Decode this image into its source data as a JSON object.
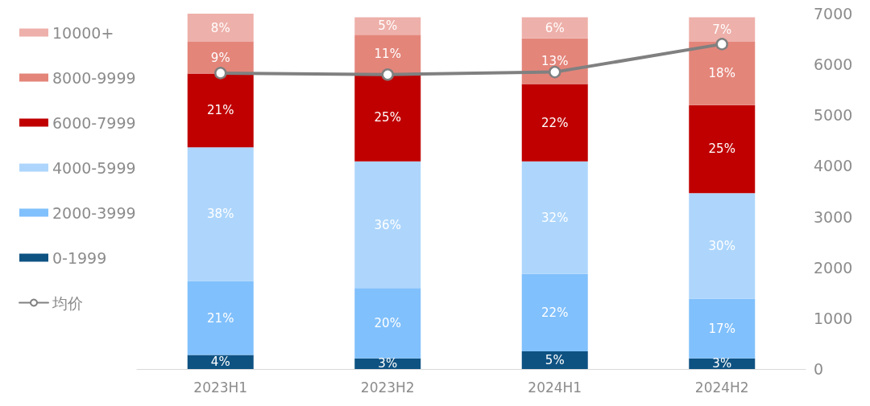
{
  "chart_data": {
    "type": "bar",
    "stacked": true,
    "categories": [
      "2023H1",
      "2023H2",
      "2024H1",
      "2024H2"
    ],
    "series": [
      {
        "name": "0-1999",
        "color": "#0e5282",
        "values": [
          4,
          3,
          5,
          3
        ],
        "value_labels": [
          "4%",
          "3%",
          "5%",
          "3%"
        ]
      },
      {
        "name": "2000-3999",
        "color": "#80c0fc",
        "values": [
          21,
          20,
          22,
          17
        ],
        "value_labels": [
          "21%",
          "20%",
          "22%",
          "17%"
        ]
      },
      {
        "name": "4000-5999",
        "color": "#aed6fc",
        "values": [
          38,
          36,
          32,
          30
        ],
        "value_labels": [
          "38%",
          "36%",
          "32%",
          "30%"
        ]
      },
      {
        "name": "6000-7999",
        "color": "#c00000",
        "values": [
          21,
          25,
          22,
          25
        ],
        "value_labels": [
          "21%",
          "25%",
          "22%",
          "25%"
        ]
      },
      {
        "name": "8000-9999",
        "color": "#e4857a",
        "values": [
          9,
          11,
          13,
          18
        ],
        "value_labels": [
          "9%",
          "11%",
          "13%",
          "18%"
        ]
      },
      {
        "name": "10000+",
        "color": "#eeb0aa",
        "values": [
          8,
          5,
          6,
          7
        ],
        "value_labels": [
          "8%",
          "5%",
          "6%",
          "7%"
        ]
      },
      {
        "name": "均价",
        "type": "line",
        "axis": "y2",
        "color": "#808080",
        "values": [
          5830,
          5800,
          5850,
          6400
        ]
      }
    ],
    "ylim": [
      0,
      101
    ],
    "y2lim": [
      0,
      7000
    ],
    "y2ticks": [
      0,
      1000,
      2000,
      3000,
      4000,
      5000,
      6000,
      7000
    ],
    "legend": "left",
    "marker": "circle",
    "grid": false
  }
}
